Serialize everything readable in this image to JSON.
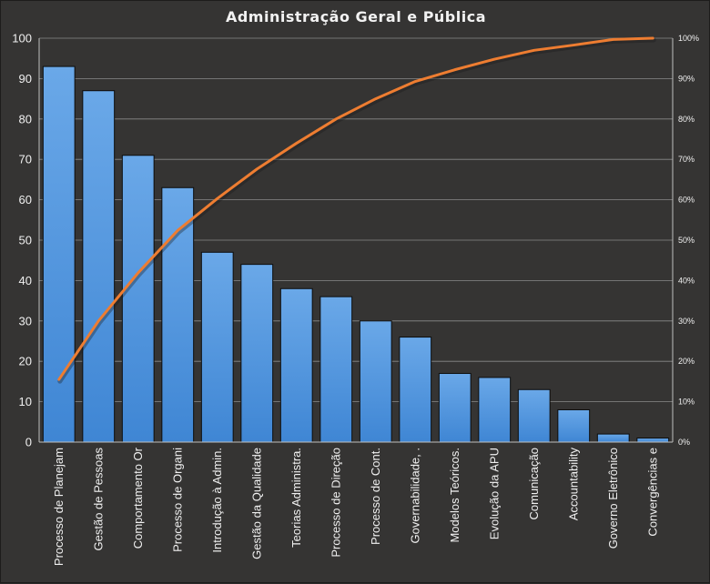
{
  "chart_data": {
    "type": "bar",
    "title": "Administração  Geral  e Pública",
    "categories": [
      "Processo de Planejam",
      "Gestão de Pessoas",
      "Comportamento  Or",
      "Processo de Organi",
      "Introdução à Admin.",
      "Gestão da Qualidade",
      "Teorias Administra.",
      "Processo de Direção",
      "Processo de Cont.",
      "Governabilidade, .",
      "Modelos Teóricos.",
      "Evolução da APU",
      "Comunicação",
      "Accountability",
      "Governo Eletrônico",
      "Convergências e"
    ],
    "series": [
      {
        "type": "bar",
        "values": [
          93,
          87,
          71,
          63,
          47,
          44,
          38,
          36,
          30,
          26,
          17,
          16,
          13,
          8,
          2,
          1
        ]
      },
      {
        "type": "line",
        "axis": "right",
        "values": [
          15.5,
          30.0,
          41.9,
          52.4,
          60.3,
          67.6,
          74.0,
          80.0,
          85.0,
          89.3,
          92.2,
          94.8,
          97.0,
          98.3,
          99.7,
          100
        ]
      }
    ],
    "yaxis_left": {
      "min": 0,
      "max": 100,
      "ticks": [
        "0",
        "10",
        "20",
        "30",
        "40",
        "50",
        "60",
        "70",
        "80",
        "90",
        "100"
      ]
    },
    "yaxis_right": {
      "min": 0,
      "max": 100,
      "ticks": [
        "0%",
        "10%",
        "20%",
        "30%",
        "40%",
        "50%",
        "60%",
        "70%",
        "80%",
        "90%",
        "100%"
      ]
    },
    "grid": true,
    "colors": {
      "bar": "#4f95dc",
      "bar_top": "#6aa7e6",
      "line": "#ee7d31",
      "grid": "#8a8a8a",
      "background": "#353433"
    }
  }
}
